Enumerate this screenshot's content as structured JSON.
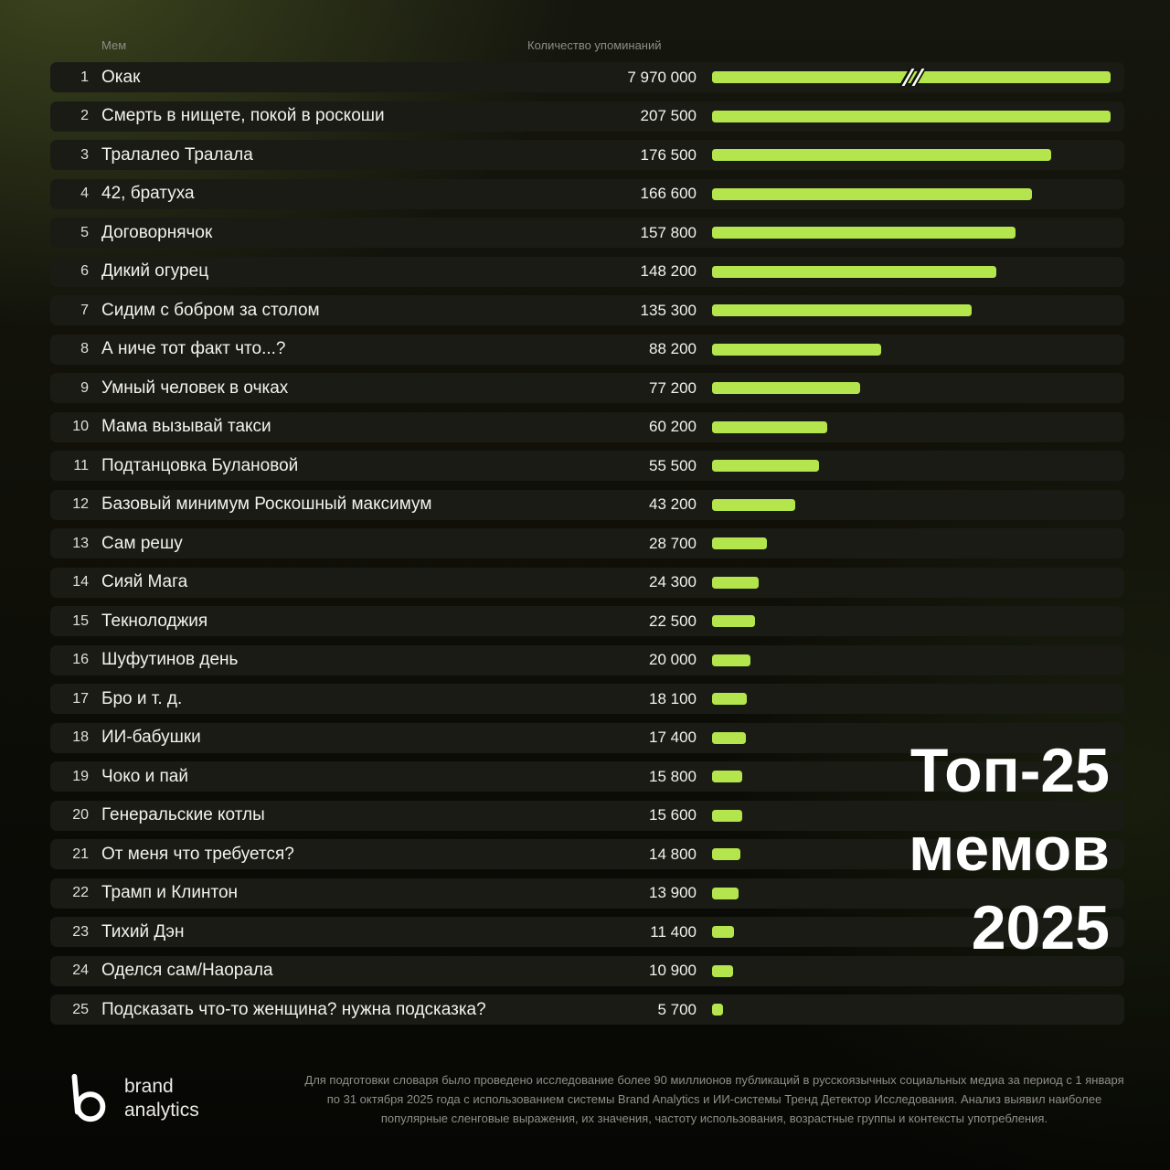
{
  "header": {
    "col_mem": "Мем",
    "col_count": "Количество упоминаний"
  },
  "title": {
    "lines": [
      "Топ-25",
      "мемов",
      "2025"
    ]
  },
  "chart_data": {
    "type": "bar",
    "orientation": "horizontal",
    "title": "Топ-25 мемов 2025",
    "xlabel": "Количество упоминаний",
    "ylabel": "Мем",
    "bar_color": "#b5e54c",
    "axis": {
      "cap_value": 207500,
      "break_for_values_above_cap": true
    },
    "rows": [
      {
        "rank": 1,
        "name": "Окак",
        "value": 7970000,
        "label": "7 970 000"
      },
      {
        "rank": 2,
        "name": "Смерть в нищете, покой в роскоши",
        "value": 207500,
        "label": "207 500"
      },
      {
        "rank": 3,
        "name": "Тралалео Тралала",
        "value": 176500,
        "label": "176 500"
      },
      {
        "rank": 4,
        "name": "42, братуха",
        "value": 166600,
        "label": "166 600"
      },
      {
        "rank": 5,
        "name": "Договорнячок",
        "value": 157800,
        "label": "157 800"
      },
      {
        "rank": 6,
        "name": "Дикий огурец",
        "value": 148200,
        "label": "148 200"
      },
      {
        "rank": 7,
        "name": "Сидим с бобром за столом",
        "value": 135300,
        "label": "135 300"
      },
      {
        "rank": 8,
        "name": "А ниче тот факт что...?",
        "value": 88200,
        "label": "88 200"
      },
      {
        "rank": 9,
        "name": "Умный человек в очках",
        "value": 77200,
        "label": "77 200"
      },
      {
        "rank": 10,
        "name": "Мама вызывай такси",
        "value": 60200,
        "label": "60 200"
      },
      {
        "rank": 11,
        "name": "Подтанцовка Булановой",
        "value": 55500,
        "label": "55 500"
      },
      {
        "rank": 12,
        "name": "Базовый минимум Роскошный максимум",
        "value": 43200,
        "label": "43 200"
      },
      {
        "rank": 13,
        "name": "Сам решу",
        "value": 28700,
        "label": "28 700"
      },
      {
        "rank": 14,
        "name": "Сияй Мага",
        "value": 24300,
        "label": "24 300"
      },
      {
        "rank": 15,
        "name": "Текнолоджия",
        "value": 22500,
        "label": "22 500"
      },
      {
        "rank": 16,
        "name": "Шуфутинов день",
        "value": 20000,
        "label": "20 000"
      },
      {
        "rank": 17,
        "name": "Бро и т. д.",
        "value": 18100,
        "label": "18 100"
      },
      {
        "rank": 18,
        "name": "ИИ-бабушки",
        "value": 17400,
        "label": "17 400"
      },
      {
        "rank": 19,
        "name": "Чоко и пай",
        "value": 15800,
        "label": "15 800"
      },
      {
        "rank": 20,
        "name": "Генеральские котлы",
        "value": 15600,
        "label": "15 600"
      },
      {
        "rank": 21,
        "name": "От меня что требуется?",
        "value": 14800,
        "label": "14 800"
      },
      {
        "rank": 22,
        "name": "Трамп и Клинтон",
        "value": 13900,
        "label": "13 900"
      },
      {
        "rank": 23,
        "name": "Тихий Дэн",
        "value": 11400,
        "label": "11 400"
      },
      {
        "rank": 24,
        "name": "Оделся сам/Наорала",
        "value": 10900,
        "label": "10 900"
      },
      {
        "rank": 25,
        "name": "Подсказать что-то женщина? нужна подсказка?",
        "value": 5700,
        "label": "5 700"
      }
    ]
  },
  "footer": {
    "brand_line1": "brand",
    "brand_line2": "analytics",
    "note": "Для подготовки словаря было проведено исследование более 90 миллионов публикаций в русскоязычных социальных медиа за период с 1 января по 31 октября 2025 года с использованием системы Brand Analytics и ИИ-системы Тренд Детектор Исследования. Анализ выявил наиболее популярные сленговые выражения, их значения, частоту использования, возрастные группы и контексты употребления."
  }
}
